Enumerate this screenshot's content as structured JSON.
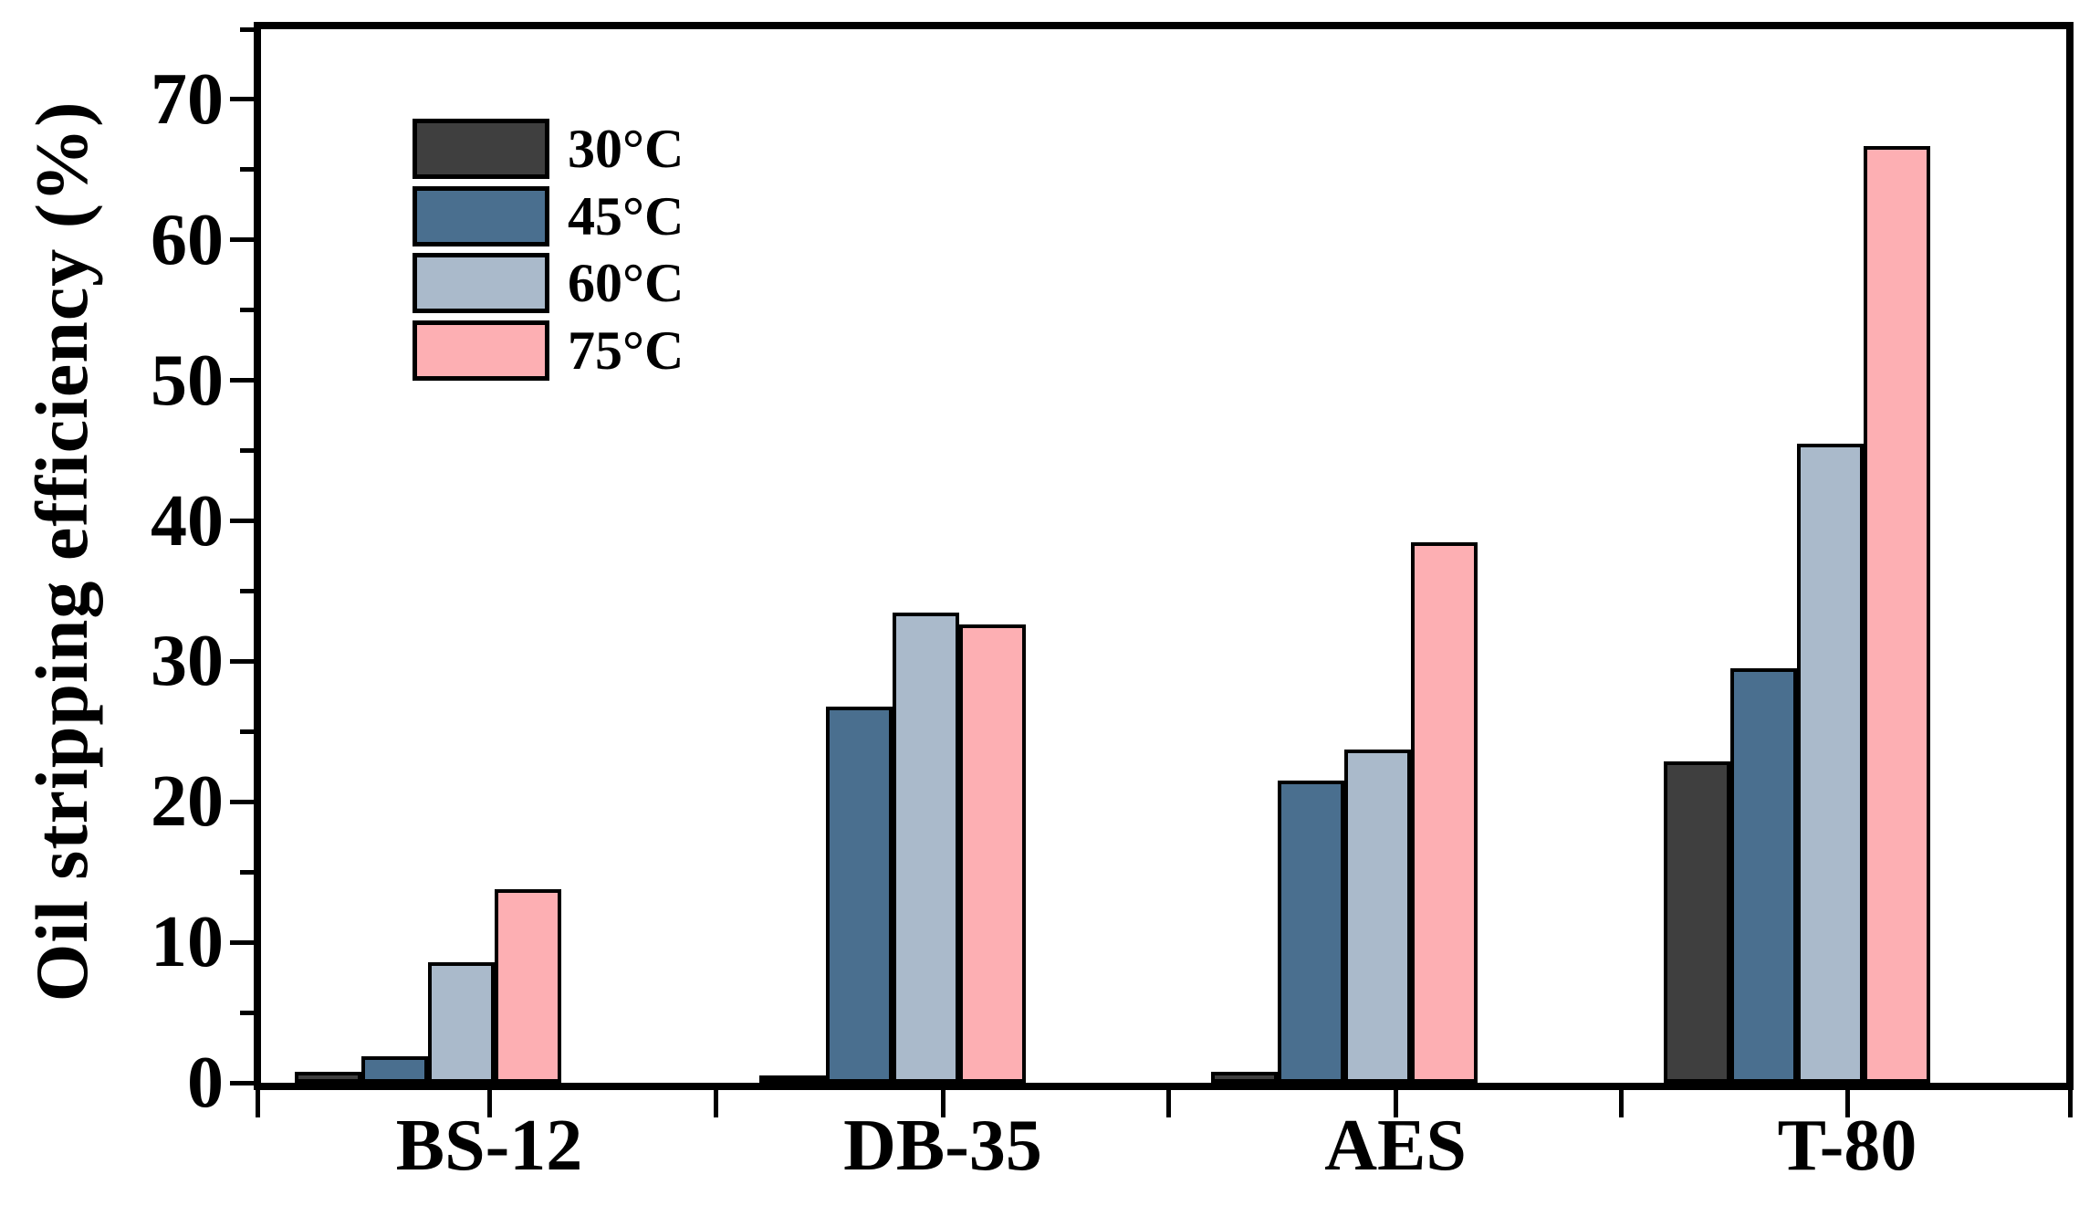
{
  "figure": {
    "background_color": "#ffffff",
    "frame_color": "#000000"
  },
  "chart_data": {
    "type": "bar",
    "title": "",
    "xlabel": "",
    "ylabel": "Oil stripping efficiency (%)",
    "categories": [
      "BS-12",
      "DB-35",
      "AES",
      "T-80"
    ],
    "series": [
      {
        "name": "30°C",
        "color": "#3F3F3F",
        "values": [
          0.8,
          0.5,
          0.8,
          22.9
        ]
      },
      {
        "name": "45°C",
        "color": "#4A6F8F",
        "values": [
          1.9,
          26.8,
          21.5,
          29.5
        ]
      },
      {
        "name": "60°C",
        "color": "#AABACB",
        "values": [
          8.6,
          33.5,
          23.7,
          45.5
        ]
      },
      {
        "name": "75°C",
        "color": "#FDAFB3",
        "values": [
          13.8,
          32.6,
          38.5,
          66.7
        ]
      }
    ],
    "ylim": [
      0,
      75
    ],
    "yticks_major": [
      0,
      10,
      20,
      30,
      40,
      50,
      60,
      70
    ],
    "yticks_minor": [
      5,
      15,
      25,
      35,
      45,
      55,
      65,
      75
    ],
    "grid": false,
    "legend_position": "upper-left-inside",
    "bar_outline_color": "#000000"
  }
}
